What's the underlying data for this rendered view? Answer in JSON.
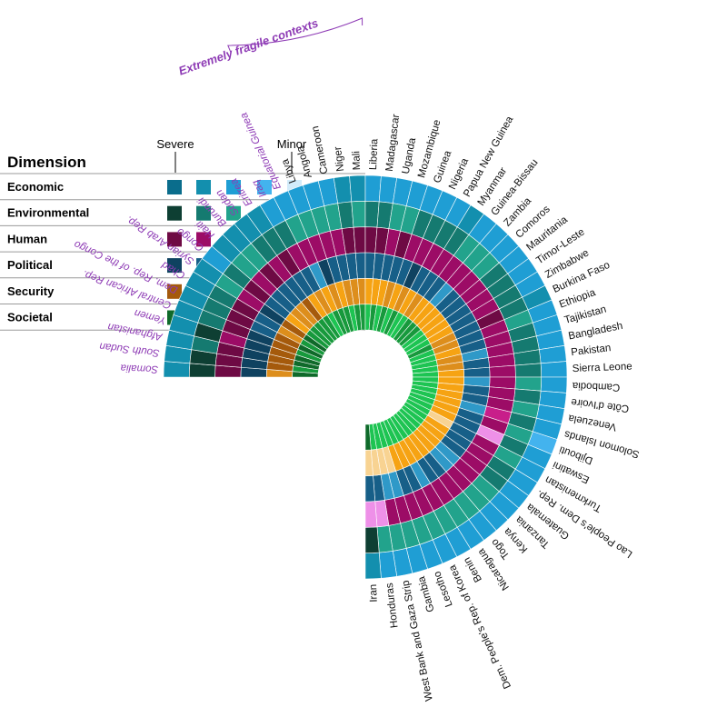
{
  "chart_data": {
    "type": "heatmap",
    "layout": "radial-semicircle",
    "group_label": "Extremely fragile contexts",
    "group_count": 15,
    "legend": {
      "title": "Dimension",
      "scale_labels": [
        "Severe",
        "Minor"
      ],
      "rows": [
        {
          "label": "Economic",
          "colors": [
            "#0a6d8c",
            "#138fae",
            "#1f9ed4",
            "#43b3ee",
            "#d2ecfa"
          ]
        },
        {
          "label": "Environmental",
          "colors": [
            "#0e3f33",
            "#157a70",
            "#22a38c",
            "#62c9a3",
            "#c9dad8"
          ]
        },
        {
          "label": "Human",
          "colors": [
            "#6e0a44",
            "#9c0c66",
            "#c81e8a",
            "#ee90e8",
            "#f6ecf7"
          ]
        },
        {
          "label": "Political",
          "colors": [
            "#0f4260",
            "#175f88",
            "#2f99c8",
            "#70d6f2",
            "#cde9f6"
          ]
        },
        {
          "label": "Security",
          "colors": [
            "#a55a0c",
            "#dd8e1c",
            "#f6a313",
            "#f8d392",
            "#fdf1d8"
          ]
        },
        {
          "label": "Societal",
          "colors": [
            "#0f6a2a",
            "#17993c",
            "#1dc452",
            "#84dda0",
            "#d9f3e2"
          ]
        }
      ]
    },
    "countries": [
      "Somalia",
      "South Sudan",
      "Afghanistan",
      "Yemen",
      "Central African Rep.",
      "Dem. Rep. of the Congo",
      "Chad",
      "Syrian Arab Rep.",
      "Congo",
      "Haiti",
      "Burundi",
      "Sudan",
      "Eritrea",
      "Iraq",
      "Equatorial Guinea",
      "Libya",
      "Angola",
      "Cameroon",
      "Niger",
      "Mali",
      "Liberia",
      "Madagascar",
      "Uganda",
      "Mozambique",
      "Guinea",
      "Nigeria",
      "Papua New Guinea",
      "Myanmar",
      "Guinea-Bissau",
      "Zambia",
      "Comoros",
      "Mauritania",
      "Timor-Leste",
      "Zimbabwe",
      "Burkina Faso",
      "Ethiopia",
      "Tajikistan",
      "Bangladesh",
      "Pakistan",
      "Sierra Leone",
      "Cambodia",
      "Côte d'Ivoire",
      "Venezuela",
      "Solomon Islands",
      "Djibouti",
      "Eswatini",
      "Turkmenistan",
      "Lao People's Dem. Rep.",
      "Guatemala",
      "Tanzania",
      "Kenya",
      "Togo",
      "Nicaragua",
      "Benin",
      "Dem. People's Rep. of Korea",
      "Lesotho",
      "Gambia",
      "West Bank and Gaza Strip",
      "Honduras",
      "Iran"
    ],
    "rings_outer_to_inner": [
      "Economic",
      "Environmental",
      "Human",
      "Political",
      "Security",
      "Societal"
    ],
    "severity_note": "1 = Severe … 5 = Minor",
    "values": [
      [
        2,
        1,
        1,
        1,
        2,
        1
      ],
      [
        2,
        1,
        1,
        1,
        1,
        2
      ],
      [
        2,
        2,
        1,
        1,
        1,
        1
      ],
      [
        2,
        1,
        2,
        1,
        1,
        1
      ],
      [
        2,
        2,
        1,
        1,
        1,
        2
      ],
      [
        2,
        2,
        1,
        2,
        1,
        1
      ],
      [
        2,
        2,
        1,
        2,
        2,
        2
      ],
      [
        2,
        3,
        2,
        1,
        1,
        1
      ],
      [
        3,
        2,
        1,
        2,
        3,
        2
      ],
      [
        2,
        3,
        2,
        2,
        2,
        2
      ],
      [
        2,
        3,
        1,
        2,
        2,
        2
      ],
      [
        2,
        2,
        2,
        2,
        1,
        2
      ],
      [
        2,
        2,
        1,
        2,
        3,
        2
      ],
      [
        3,
        2,
        2,
        2,
        2,
        3
      ],
      [
        3,
        3,
        2,
        3,
        3,
        2
      ],
      [
        3,
        3,
        2,
        1,
        2,
        2
      ],
      [
        3,
        3,
        2,
        2,
        3,
        2
      ],
      [
        3,
        3,
        2,
        2,
        2,
        3
      ],
      [
        2,
        2,
        1,
        2,
        2,
        2
      ],
      [
        2,
        3,
        1,
        2,
        2,
        2
      ],
      [
        3,
        2,
        1,
        2,
        3,
        3
      ],
      [
        3,
        2,
        1,
        2,
        3,
        2
      ],
      [
        3,
        3,
        2,
        2,
        3,
        3
      ],
      [
        3,
        3,
        1,
        2,
        2,
        2
      ],
      [
        3,
        2,
        2,
        2,
        3,
        3
      ],
      [
        3,
        2,
        2,
        1,
        2,
        2
      ],
      [
        3,
        2,
        2,
        2,
        3,
        3
      ],
      [
        2,
        2,
        2,
        2,
        2,
        3
      ],
      [
        3,
        3,
        2,
        2,
        3,
        2
      ],
      [
        3,
        3,
        2,
        3,
        3,
        2
      ],
      [
        3,
        3,
        2,
        2,
        3,
        2
      ],
      [
        3,
        2,
        2,
        2,
        3,
        3
      ],
      [
        3,
        2,
        2,
        2,
        3,
        3
      ],
      [
        3,
        2,
        2,
        2,
        3,
        3
      ],
      [
        2,
        2,
        1,
        2,
        2,
        2
      ],
      [
        3,
        3,
        2,
        2,
        2,
        3
      ],
      [
        3,
        2,
        2,
        2,
        3,
        3
      ],
      [
        3,
        2,
        2,
        3,
        2,
        3
      ],
      [
        3,
        2,
        2,
        2,
        2,
        3
      ],
      [
        3,
        2,
        2,
        2,
        3,
        3
      ],
      [
        3,
        3,
        2,
        3,
        3,
        3
      ],
      [
        3,
        2,
        2,
        2,
        3,
        3
      ],
      [
        3,
        3,
        2,
        2,
        3,
        3
      ],
      [
        3,
        2,
        3,
        3,
        3,
        3
      ],
      [
        4,
        3,
        2,
        2,
        3,
        3
      ],
      [
        3,
        2,
        4,
        2,
        3,
        3
      ],
      [
        3,
        3,
        2,
        2,
        4,
        3
      ],
      [
        3,
        2,
        2,
        2,
        3,
        3
      ],
      [
        3,
        2,
        2,
        2,
        3,
        3
      ],
      [
        3,
        3,
        2,
        3,
        3,
        3
      ],
      [
        3,
        3,
        2,
        3,
        3,
        3
      ],
      [
        3,
        3,
        2,
        2,
        3,
        3
      ],
      [
        3,
        3,
        2,
        2,
        3,
        3
      ],
      [
        3,
        3,
        2,
        3,
        3,
        3
      ],
      [
        3,
        3,
        2,
        2,
        3,
        3
      ],
      [
        3,
        3,
        2,
        2,
        3,
        3
      ],
      [
        3,
        3,
        2,
        3,
        4,
        3
      ],
      [
        3,
        3,
        2,
        3,
        4,
        3
      ],
      [
        3,
        3,
        4,
        2,
        4,
        3
      ],
      [
        2,
        1,
        4,
        2,
        4,
        1
      ]
    ]
  }
}
